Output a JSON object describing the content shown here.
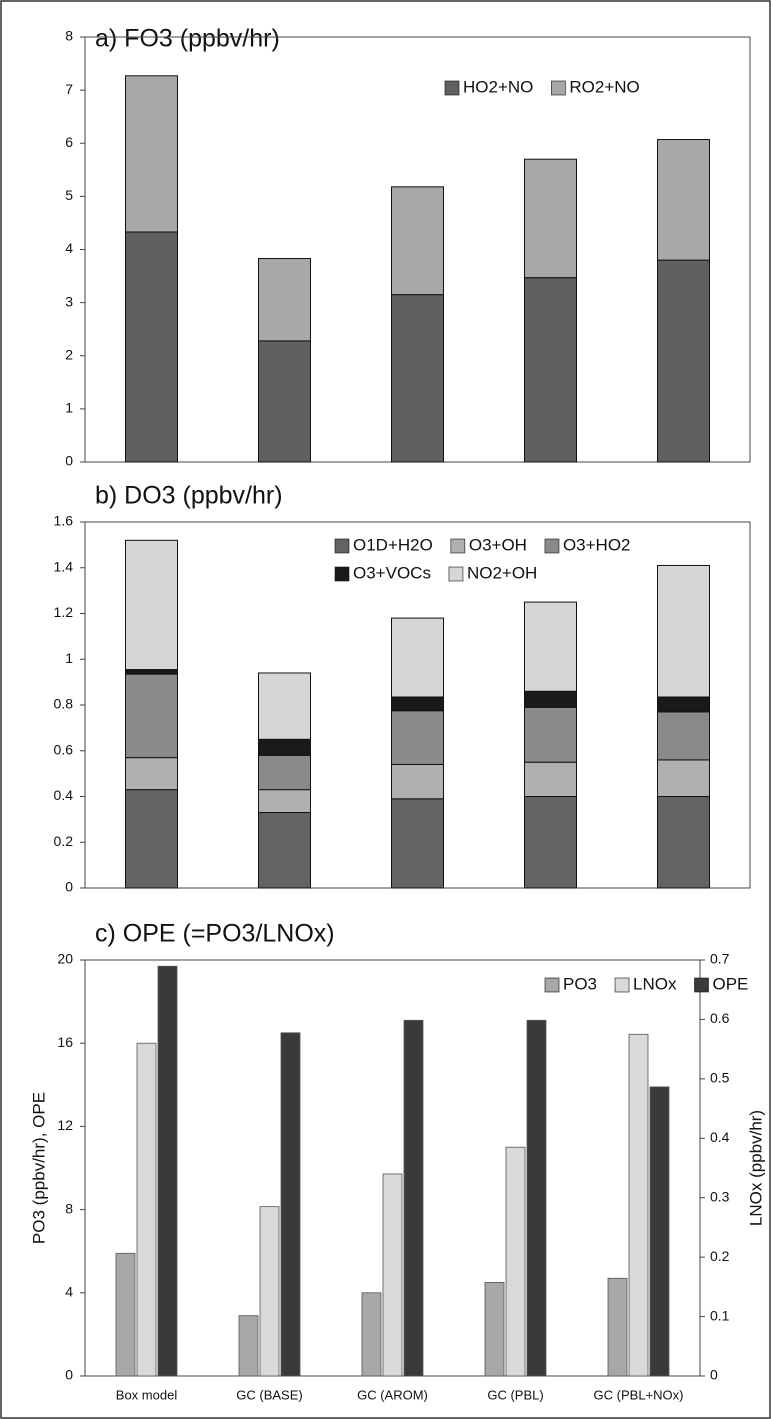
{
  "chart_data": [
    {
      "type": "bar",
      "stacked": true,
      "title": "a) FO3 (ppbv/hr)",
      "categories": [
        null,
        null,
        null,
        null,
        null
      ],
      "series": [
        {
          "name": "HO2+NO",
          "color": "#606060",
          "values": [
            4.33,
            2.28,
            3.15,
            3.47,
            3.8
          ]
        },
        {
          "name": "RO2+NO",
          "color": "#a8a8a8",
          "values": [
            2.94,
            1.55,
            2.03,
            2.23,
            2.27
          ]
        }
      ],
      "ylim": [
        0,
        8
      ],
      "yticks": [
        0,
        1,
        2,
        3,
        4,
        5,
        6,
        7,
        8
      ],
      "legend": "upper right"
    },
    {
      "type": "bar",
      "stacked": true,
      "title": "b) DO3 (ppbv/hr)",
      "categories": [
        null,
        null,
        null,
        null,
        null
      ],
      "series": [
        {
          "name": "O1D+H2O",
          "color": "#636363",
          "values": [
            0.43,
            0.33,
            0.39,
            0.4,
            0.4
          ]
        },
        {
          "name": "O3+OH",
          "color": "#b0b0b0",
          "values": [
            0.14,
            0.1,
            0.15,
            0.15,
            0.16
          ]
        },
        {
          "name": "O3+HO2",
          "color": "#8a8a8a",
          "values": [
            0.365,
            0.15,
            0.235,
            0.24,
            0.21
          ]
        },
        {
          "name": "O3+VOCs",
          "color": "#1a1a1a",
          "values": [
            0.02,
            0.07,
            0.06,
            0.07,
            0.065
          ]
        },
        {
          "name": "NO2+OH",
          "color": "#d6d6d6",
          "values": [
            0.565,
            0.29,
            0.345,
            0.39,
            0.575
          ]
        }
      ],
      "ylim": [
        0,
        1.6
      ],
      "yticks": [
        0,
        0.2,
        0.4,
        0.6,
        0.8,
        1,
        1.2,
        1.4,
        1.6
      ],
      "legend": "upper right"
    },
    {
      "type": "bar",
      "stacked": false,
      "title": "c) OPE (=PO3/LNOx)",
      "categories": [
        "Box model",
        "GC (BASE)",
        "GC (AROM)",
        "GC (PBL)",
        "GC (PBL+NOx)"
      ],
      "series": [
        {
          "name": "PO3",
          "color": "#a8a8a8",
          "values": [
            5.9,
            2.9,
            4.0,
            4.5,
            4.7
          ]
        },
        {
          "name": "LNOx",
          "color": "#d9d9d9",
          "axis": "y2",
          "values": [
            0.56,
            0.285,
            0.34,
            0.385,
            0.575
          ]
        },
        {
          "name": "OPE",
          "color": "#3a3a3a",
          "values": [
            19.7,
            16.5,
            17.1,
            17.1,
            13.9
          ]
        }
      ],
      "ylabel": "PO3 (ppbv/hr), OPE",
      "y2label": "LNOx (ppbv/hr)",
      "ylim": [
        0,
        20
      ],
      "yticks": [
        0,
        4,
        8,
        12,
        16,
        20
      ],
      "y2lim": [
        0,
        0.7
      ],
      "y2ticks": [
        0,
        0.1,
        0.2,
        0.3,
        0.4,
        0.5,
        0.6,
        0.7
      ],
      "legend": "upper right"
    }
  ]
}
